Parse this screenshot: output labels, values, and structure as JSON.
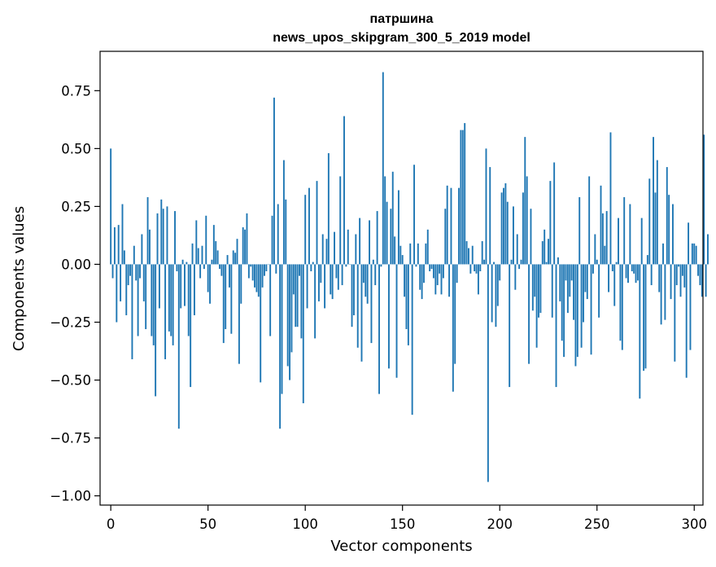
{
  "chart_data": {
    "type": "bar",
    "title": "патршина",
    "subtitle": "news_upos_skipgram_300_5_2019 model",
    "xlabel": "Vector components",
    "ylabel": "Components values",
    "xlim": [
      -5.5,
      304.5
    ],
    "ylim": [
      -1.04,
      0.92
    ],
    "xticks": [
      0,
      50,
      100,
      150,
      200,
      250,
      300
    ],
    "yticks": [
      -1.0,
      -0.75,
      -0.5,
      -0.25,
      0.0,
      0.25,
      0.5,
      0.75
    ],
    "ytick_labels": [
      "−1.00",
      "−0.75",
      "−0.50",
      "−0.25",
      "0.00",
      "0.25",
      "0.50",
      "0.75"
    ],
    "grid": false,
    "bar_color": "#1f77b4",
    "values": [
      0.5,
      -0.06,
      0.16,
      -0.25,
      0.17,
      -0.16,
      0.26,
      0.06,
      -0.22,
      -0.09,
      -0.05,
      -0.41,
      0.08,
      -0.07,
      -0.31,
      -0.06,
      0.13,
      -0.16,
      -0.28,
      0.29,
      0.15,
      -0.31,
      -0.35,
      -0.57,
      0.22,
      -0.19,
      0.28,
      0.24,
      -0.41,
      0.25,
      -0.29,
      -0.31,
      -0.35,
      0.23,
      -0.03,
      -0.71,
      -0.19,
      0.02,
      -0.18,
      0.01,
      -0.31,
      -0.53,
      0.09,
      -0.22,
      0.19,
      0.07,
      -0.06,
      0.08,
      -0.02,
      0.21,
      -0.12,
      -0.17,
      0.02,
      0.17,
      0.1,
      0.06,
      -0.02,
      -0.05,
      -0.34,
      -0.28,
      0.04,
      -0.1,
      -0.3,
      0.06,
      0.05,
      0.11,
      -0.43,
      -0.17,
      0.16,
      0.15,
      0.22,
      -0.06,
      -0.01,
      -0.07,
      -0.1,
      -0.12,
      -0.14,
      -0.51,
      -0.1,
      -0.05,
      -0.03,
      0.0,
      -0.31,
      0.21,
      0.72,
      -0.04,
      0.26,
      -0.71,
      -0.56,
      0.45,
      0.28,
      -0.44,
      -0.5,
      -0.38,
      -0.13,
      -0.27,
      -0.27,
      -0.05,
      -0.32,
      -0.6,
      0.3,
      -0.19,
      0.33,
      -0.03,
      0.01,
      -0.32,
      0.36,
      -0.16,
      -0.08,
      0.13,
      -0.19,
      0.11,
      0.48,
      -0.13,
      -0.15,
      0.14,
      -0.06,
      -0.11,
      0.38,
      -0.09,
      0.64,
      -0.01,
      0.15,
      0.0,
      -0.27,
      -0.22,
      0.13,
      -0.36,
      0.2,
      -0.42,
      -0.08,
      -0.14,
      -0.17,
      0.19,
      -0.34,
      0.02,
      -0.09,
      0.23,
      -0.56,
      -0.01,
      0.83,
      0.38,
      0.27,
      -0.45,
      0.24,
      0.4,
      0.12,
      -0.49,
      0.32,
      0.08,
      0.04,
      -0.14,
      -0.28,
      -0.35,
      0.09,
      -0.65,
      0.43,
      -0.01,
      0.09,
      -0.11,
      -0.15,
      -0.08,
      0.09,
      0.15,
      -0.03,
      -0.02,
      -0.06,
      -0.13,
      -0.09,
      -0.04,
      -0.13,
      -0.06,
      0.24,
      0.34,
      -0.14,
      0.33,
      -0.55,
      -0.43,
      -0.08,
      0.33,
      0.58,
      0.58,
      0.61,
      0.1,
      0.07,
      -0.04,
      0.08,
      -0.03,
      -0.04,
      -0.13,
      -0.03,
      0.1,
      0.02,
      0.5,
      -0.94,
      0.42,
      -0.25,
      0.01,
      -0.27,
      -0.18,
      -0.07,
      0.31,
      0.33,
      0.35,
      0.27,
      -0.53,
      0.02,
      0.25,
      -0.11,
      0.13,
      -0.02,
      0.02,
      0.31,
      0.55,
      0.38,
      -0.43,
      0.24,
      -0.2,
      -0.14,
      -0.36,
      -0.23,
      -0.21,
      0.1,
      0.15,
      0.01,
      0.11,
      0.36,
      -0.23,
      0.44,
      -0.53,
      0.03,
      -0.16,
      -0.33,
      -0.4,
      -0.07,
      -0.21,
      -0.14,
      -0.07,
      -0.24,
      -0.44,
      -0.4,
      0.29,
      -0.36,
      -0.25,
      -0.12,
      -0.15,
      0.38,
      -0.39,
      -0.04,
      0.13,
      0.02,
      -0.23,
      0.34,
      0.22,
      0.08,
      0.23,
      -0.12,
      0.57,
      -0.03,
      -0.18,
      0.01,
      0.2,
      -0.33,
      -0.37,
      0.29,
      -0.06,
      -0.08,
      0.26,
      -0.03,
      -0.04,
      -0.08,
      -0.07,
      -0.58,
      0.2,
      -0.46,
      -0.45,
      0.04,
      0.37,
      -0.09,
      0.55,
      0.31,
      0.45,
      -0.12,
      -0.26,
      0.09,
      -0.24,
      0.42,
      0.3,
      -0.15,
      0.26,
      -0.42,
      -0.09,
      -0.01,
      -0.14,
      -0.05,
      -0.1,
      -0.49,
      0.18,
      -0.37,
      0.09,
      0.09,
      0.08,
      -0.05,
      -0.09,
      -0.14,
      0.56,
      -0.14,
      0.13
    ]
  }
}
